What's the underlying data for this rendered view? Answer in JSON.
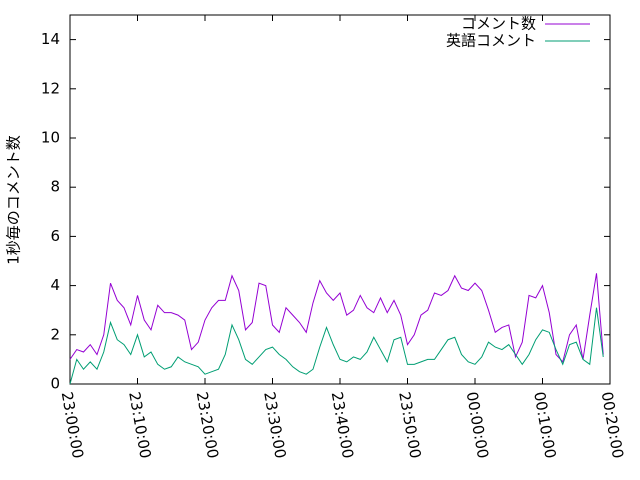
{
  "chart_data": {
    "type": "line",
    "y_label": "1秒毎のコメント数",
    "x": [
      "23:00:00",
      "23:01:00",
      "23:02:00",
      "23:03:00",
      "23:04:00",
      "23:05:00",
      "23:06:00",
      "23:07:00",
      "23:08:00",
      "23:09:00",
      "23:10:00",
      "23:11:00",
      "23:12:00",
      "23:13:00",
      "23:14:00",
      "23:15:00",
      "23:16:00",
      "23:17:00",
      "23:18:00",
      "23:19:00",
      "23:20:00",
      "23:21:00",
      "23:22:00",
      "23:23:00",
      "23:24:00",
      "23:25:00",
      "23:26:00",
      "23:27:00",
      "23:28:00",
      "23:29:00",
      "23:30:00",
      "23:31:00",
      "23:32:00",
      "23:33:00",
      "23:34:00",
      "23:35:00",
      "23:36:00",
      "23:37:00",
      "23:38:00",
      "23:39:00",
      "23:40:00",
      "23:41:00",
      "23:42:00",
      "23:43:00",
      "23:44:00",
      "23:45:00",
      "23:46:00",
      "23:47:00",
      "23:48:00",
      "23:49:00",
      "23:50:00",
      "23:51:00",
      "23:52:00",
      "23:53:00",
      "23:54:00",
      "23:55:00",
      "23:56:00",
      "23:57:00",
      "23:58:00",
      "23:59:00",
      "00:00:00",
      "00:01:00",
      "00:02:00",
      "00:03:00",
      "00:04:00",
      "00:05:00",
      "00:06:00",
      "00:07:00",
      "00:08:00",
      "00:09:00",
      "00:10:00",
      "00:11:00",
      "00:12:00",
      "00:13:00",
      "00:14:00",
      "00:15:00",
      "00:16:00",
      "00:17:00",
      "00:18:00",
      "00:19:00"
    ],
    "series": [
      {
        "name": "コメント数",
        "color": "#9400d3",
        "values": [
          1.0,
          1.4,
          1.3,
          1.6,
          1.2,
          2.0,
          4.1,
          3.4,
          3.1,
          2.4,
          3.6,
          2.6,
          2.2,
          3.2,
          2.9,
          2.9,
          2.8,
          2.6,
          1.4,
          1.7,
          2.6,
          3.1,
          3.4,
          3.4,
          4.4,
          3.8,
          2.2,
          2.5,
          4.1,
          4.0,
          2.4,
          2.1,
          3.1,
          2.8,
          2.5,
          2.1,
          3.3,
          4.2,
          3.7,
          3.4,
          3.7,
          2.8,
          3.0,
          3.6,
          3.1,
          2.9,
          3.5,
          2.9,
          3.4,
          2.8,
          1.6,
          2.0,
          2.8,
          3.0,
          3.7,
          3.6,
          3.8,
          4.4,
          3.9,
          3.8,
          4.1,
          3.8,
          3.0,
          2.1,
          2.3,
          2.4,
          1.1,
          1.7,
          3.6,
          3.5,
          4.0,
          2.9,
          1.2,
          0.9,
          2.0,
          2.4,
          1.0,
          2.8,
          4.5,
          1.2
        ]
      },
      {
        "name": "英語コメント",
        "color": "#009e73",
        "values": [
          0.0,
          1.0,
          0.6,
          0.9,
          0.6,
          1.3,
          2.5,
          1.8,
          1.6,
          1.2,
          2.0,
          1.1,
          1.3,
          0.8,
          0.6,
          0.7,
          1.1,
          0.9,
          0.8,
          0.7,
          0.4,
          0.5,
          0.6,
          1.2,
          2.4,
          1.8,
          1.0,
          0.8,
          1.1,
          1.4,
          1.5,
          1.2,
          1.0,
          0.7,
          0.5,
          0.4,
          0.6,
          1.5,
          2.3,
          1.6,
          1.0,
          0.9,
          1.1,
          1.0,
          1.3,
          1.9,
          1.4,
          0.9,
          1.8,
          1.9,
          0.8,
          0.8,
          0.9,
          1.0,
          1.0,
          1.4,
          1.8,
          1.9,
          1.2,
          0.9,
          0.8,
          1.1,
          1.7,
          1.5,
          1.4,
          1.6,
          1.2,
          0.8,
          1.2,
          1.8,
          2.2,
          2.1,
          1.4,
          0.8,
          1.6,
          1.7,
          1.0,
          0.8,
          3.1,
          1.1
        ]
      }
    ],
    "xlim": [
      "23:00:00",
      "00:20:00"
    ],
    "xticks": [
      "23:00:00",
      "23:10:00",
      "23:20:00",
      "23:30:00",
      "23:40:00",
      "23:50:00",
      "00:00:00",
      "00:10:00",
      "00:20:00"
    ],
    "ylim": [
      0,
      15
    ],
    "yticks": [
      0,
      2,
      4,
      6,
      8,
      10,
      12,
      14
    ],
    "legend": "top-right"
  }
}
